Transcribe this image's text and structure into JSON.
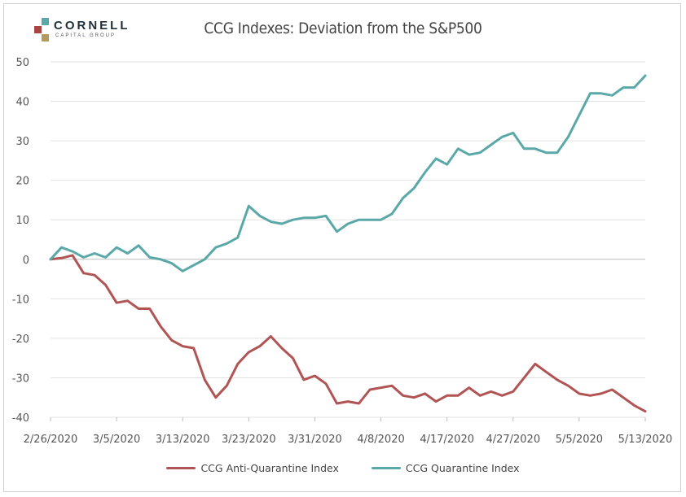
{
  "logo": {
    "word": "CORNELL",
    "sub": "CAPITAL GROUP",
    "colors": [
      "#5aa8a8",
      "#a84444",
      "#b59a5e"
    ]
  },
  "chart_data": {
    "type": "line",
    "title": "CCG Indexes: Deviation from the S&P500",
    "xlabel": "",
    "ylabel": "",
    "ylim": [
      -40,
      50
    ],
    "yticks": [
      50,
      40,
      30,
      20,
      10,
      0,
      -10,
      -20,
      -30,
      -40
    ],
    "xtick_labels": [
      "2/26/2020",
      "3/5/2020",
      "3/13/2020",
      "3/23/2020",
      "3/31/2020",
      "4/8/2020",
      "4/17/2020",
      "4/27/2020",
      "5/5/2020",
      "5/13/2020"
    ],
    "xtick_index": [
      0,
      6,
      12,
      18,
      24,
      30,
      36,
      42,
      48,
      54
    ],
    "grid": true,
    "legend_position": "bottom",
    "series": [
      {
        "name": "CCG Anti-Quarantine Index",
        "color": "#b05454",
        "values": [
          0,
          0.3,
          1,
          -3.5,
          -4,
          -6.5,
          -11,
          -10.5,
          -12.5,
          -12.5,
          -17,
          -20.5,
          -22,
          -22.5,
          -30.5,
          -35,
          -32,
          -26.5,
          -23.5,
          -22,
          -19.5,
          -22.5,
          -25,
          -30.5,
          -29.5,
          -31.5,
          -36.5,
          -36,
          -36.5,
          -33,
          -32.5,
          -32,
          -34.5,
          -35,
          -34,
          -36,
          -34.5,
          -34.5,
          -32.5,
          -34.5,
          -33.5,
          -34.5,
          -33.5,
          -30,
          -26.5,
          -28.5,
          -30.5,
          -32,
          -34,
          -34.5,
          -34,
          -33,
          -35,
          -37,
          -38.5
        ]
      },
      {
        "name": "CCG Quarantine Index",
        "color": "#5aa8a8",
        "values": [
          0,
          3,
          2,
          0.5,
          1.5,
          0.5,
          3,
          1.5,
          3.5,
          0.5,
          0,
          -1,
          -3,
          -1.5,
          0,
          3,
          4,
          5.5,
          13.5,
          11,
          9.5,
          9,
          10,
          10.5,
          10.5,
          11,
          7,
          9,
          10,
          10,
          10,
          11.5,
          15.5,
          18,
          22,
          25.5,
          24,
          28,
          26.5,
          27,
          29,
          31,
          32,
          28,
          28,
          27,
          27,
          31,
          36.5,
          42,
          42,
          41.5,
          43.5,
          43.5,
          46.5
        ]
      }
    ]
  }
}
